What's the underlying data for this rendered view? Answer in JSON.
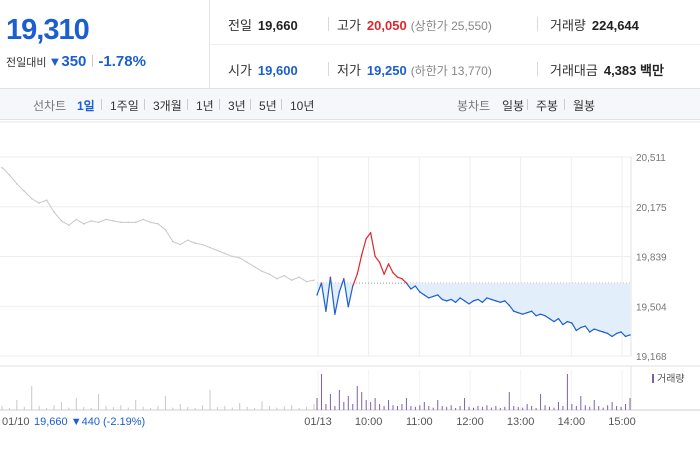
{
  "quote": {
    "current_price": "19,310",
    "change_label": "전일대비",
    "change_icon": "down-triangle-icon",
    "change_amount": "350",
    "change_percent": "-1.78%"
  },
  "stats": {
    "prev_close": {
      "label": "전일",
      "value": "19,660"
    },
    "high": {
      "label": "고가",
      "value": "20,050",
      "sub": "(상한가 25,550)"
    },
    "volume": {
      "label": "거래량",
      "value": "224,644"
    },
    "open": {
      "label": "시가",
      "value": "19,600"
    },
    "low": {
      "label": "저가",
      "value": "19,250",
      "sub": "(하한가 13,770)"
    },
    "trade_value": {
      "label": "거래대금",
      "value": "4,383 백만"
    }
  },
  "tabs": {
    "line_group": "선차트",
    "line_tabs": [
      "1일",
      "1주일",
      "3개월",
      "1년",
      "3년",
      "5년",
      "10년"
    ],
    "active_tab": "1일",
    "candle_group": "봉차트",
    "candle_tabs": [
      "일봉",
      "주봉",
      "월봉"
    ]
  },
  "colors": {
    "up": "#e0262b",
    "down": "#1a5ed1",
    "prev_day_line": "#c8c8c8",
    "below_area": "#e3eefb",
    "volume_bar": "#7d60a8",
    "accent": "#1a5ed1"
  },
  "chart_data": {
    "type": "line",
    "y_ticks": [
      "20,511",
      "20,175",
      "19,839",
      "19,504",
      "19,168"
    ],
    "ylim": [
      19168,
      20511
    ],
    "x_ticks": [
      "01/13",
      "10:00",
      "11:00",
      "12:00",
      "13:00",
      "14:00",
      "15:00"
    ],
    "prev_day_label": "01/10",
    "prev_day_summary": "19,660 ▼440 (-2.19%)",
    "prev_day_close": 19660,
    "volume_legend": "거래량",
    "prev_day_series": {
      "name": "01/10",
      "values": [
        20440,
        20390,
        20330,
        20280,
        20230,
        20200,
        20220,
        20140,
        20080,
        20050,
        20090,
        20060,
        20080,
        20070,
        20090,
        20080,
        20070,
        20070,
        20070,
        20090,
        20070,
        20060,
        20020,
        19940,
        19920,
        19950,
        19930,
        19920,
        19900,
        19880,
        19860,
        19840,
        19830,
        19800,
        19770,
        19740,
        19720,
        19690,
        19710,
        19680,
        19700,
        19670,
        19680
      ]
    },
    "today_series": {
      "name": "01/13",
      "values": [
        19580,
        19660,
        19470,
        19700,
        19450,
        19600,
        19690,
        19500,
        19640,
        19720,
        19850,
        19960,
        20000,
        19840,
        19800,
        19720,
        19790,
        19730,
        19700,
        19690,
        19660,
        19620,
        19640,
        19600,
        19580,
        19560,
        19570,
        19580,
        19550,
        19540,
        19550,
        19530,
        19560,
        19540,
        19520,
        19540,
        19550,
        19530,
        19560,
        19550,
        19540,
        19530,
        19540,
        19510,
        19470,
        19460,
        19450,
        19460,
        19470,
        19440,
        19450,
        19440,
        19420,
        19400,
        19420,
        19380,
        19400,
        19390,
        19340,
        19360,
        19370,
        19330,
        19350,
        19340,
        19330,
        19320,
        19300,
        19320,
        19330,
        19300,
        19310
      ]
    },
    "prev_day_volume": [
      0.1,
      0.05,
      0.25,
      0.08,
      0.6,
      0.1,
      0.05,
      0.12,
      0.2,
      0.06,
      0.3,
      0.08,
      0.05,
      0.4,
      0.1,
      0.07,
      0.12,
      0.06,
      0.25,
      0.08,
      0.05,
      0.1,
      0.35,
      0.06,
      0.15,
      0.08,
      0.05,
      0.12,
      0.5,
      0.07,
      0.1,
      0.06,
      0.18,
      0.08,
      0.05,
      0.22,
      0.1,
      0.06,
      0.09,
      0.12,
      0.05,
      0.08,
      0.15
    ],
    "today_volume": [
      0.3,
      0.9,
      0.15,
      0.4,
      0.1,
      0.5,
      0.2,
      0.35,
      0.15,
      0.6,
      0.45,
      0.25,
      0.2,
      0.3,
      0.15,
      0.1,
      0.25,
      0.12,
      0.1,
      0.15,
      0.3,
      0.1,
      0.08,
      0.12,
      0.2,
      0.1,
      0.06,
      0.25,
      0.1,
      0.08,
      0.12,
      0.05,
      0.1,
      0.3,
      0.08,
      0.06,
      0.1,
      0.08,
      0.12,
      0.06,
      0.1,
      0.05,
      0.08,
      0.45,
      0.1,
      0.08,
      0.06,
      0.15,
      0.1,
      0.05,
      0.4,
      0.12,
      0.08,
      0.06,
      0.2,
      0.1,
      0.9,
      0.15,
      0.1,
      0.35,
      0.12,
      0.08,
      0.25,
      0.1,
      0.06,
      0.12,
      0.2,
      0.1,
      0.08,
      0.15,
      0.3
    ]
  }
}
